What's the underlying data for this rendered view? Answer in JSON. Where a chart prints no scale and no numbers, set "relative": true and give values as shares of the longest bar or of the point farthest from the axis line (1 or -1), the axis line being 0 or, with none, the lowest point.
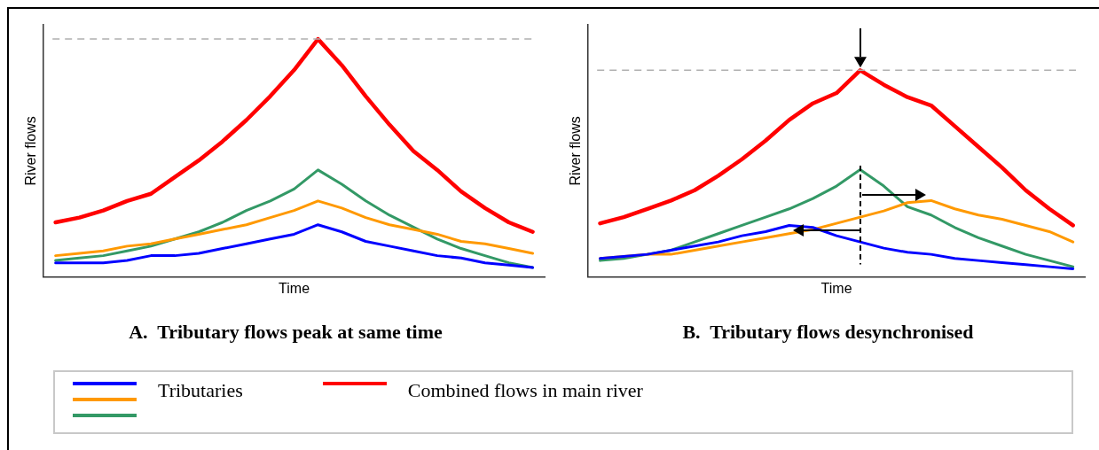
{
  "chart_data": [
    {
      "type": "line",
      "title": "A.  Tributary flows peak at same time",
      "xlabel": "Time",
      "ylabel": "River flows",
      "relative": true,
      "tick_labels": false,
      "legend": "bottom",
      "categories": [
        null,
        null,
        null,
        null,
        null,
        null,
        null,
        null,
        null,
        null,
        null,
        null,
        null,
        null,
        null,
        null,
        null,
        null,
        null,
        null,
        null
      ],
      "ref_lines": [
        {
          "axis": "y",
          "value": 1,
          "color": "#b0b0b0",
          "line_style": "dashed"
        }
      ],
      "series": [
        {
          "name": "Tributaries",
          "color": "#0000ff",
          "values": [
            0.06,
            0.06,
            0.06,
            0.07,
            0.09,
            0.09,
            0.1,
            0.12,
            0.14,
            0.16,
            0.18,
            0.22,
            0.19,
            0.15,
            0.13,
            0.11,
            0.09,
            0.08,
            0.06,
            0.05,
            0.04
          ]
        },
        {
          "color": "#ff9900",
          "values": [
            0.09,
            0.1,
            0.11,
            0.13,
            0.14,
            0.16,
            0.18,
            0.2,
            0.22,
            0.25,
            0.28,
            0.32,
            0.29,
            0.25,
            0.22,
            0.2,
            0.18,
            0.15,
            0.14,
            0.12,
            0.1
          ]
        },
        {
          "color": "#339966",
          "values": [
            0.07,
            0.08,
            0.09,
            0.11,
            0.13,
            0.16,
            0.19,
            0.23,
            0.28,
            0.32,
            0.37,
            0.45,
            0.39,
            0.32,
            0.26,
            0.21,
            0.16,
            0.12,
            0.09,
            0.06,
            0.04
          ]
        },
        {
          "name": "Combined flows in main river",
          "color": "#ff0000",
          "values": [
            0.23,
            0.25,
            0.28,
            0.32,
            0.35,
            0.42,
            0.49,
            0.57,
            0.66,
            0.76,
            0.87,
            1.0,
            0.89,
            0.76,
            0.64,
            0.53,
            0.45,
            0.36,
            0.29,
            0.23,
            0.19
          ]
        }
      ]
    },
    {
      "type": "line",
      "title": "B.  Tributary flows desynchronised",
      "xlabel": "Time",
      "ylabel": "River flows",
      "relative": true,
      "tick_labels": false,
      "categories": [
        null,
        null,
        null,
        null,
        null,
        null,
        null,
        null,
        null,
        null,
        null,
        null,
        null,
        null,
        null,
        null,
        null,
        null,
        null,
        null,
        null
      ],
      "ref_lines": [
        {
          "axis": "y",
          "value": 1,
          "color": "#b0b0b0",
          "line_style": "dashed"
        }
      ],
      "series": [
        {
          "color": "#0000ff",
          "values": [
            0.09,
            0.1,
            0.11,
            0.13,
            0.15,
            0.17,
            0.2,
            0.22,
            0.25,
            0.24,
            0.2,
            0.17,
            0.14,
            0.12,
            0.11,
            0.09,
            0.08,
            0.07,
            0.06,
            0.05,
            0.04
          ]
        },
        {
          "color": "#ff9900",
          "values": [
            0.09,
            0.1,
            0.11,
            0.11,
            0.13,
            0.15,
            0.17,
            0.19,
            0.21,
            0.23,
            0.26,
            0.29,
            0.32,
            0.36,
            0.37,
            0.33,
            0.3,
            0.28,
            0.25,
            0.22,
            0.17
          ]
        },
        {
          "color": "#339966",
          "values": [
            0.08,
            0.09,
            0.11,
            0.13,
            0.17,
            0.21,
            0.25,
            0.29,
            0.33,
            0.38,
            0.44,
            0.52,
            0.44,
            0.34,
            0.3,
            0.24,
            0.19,
            0.15,
            0.11,
            0.08,
            0.05
          ]
        },
        {
          "color": "#ff0000",
          "values": [
            0.26,
            0.29,
            0.33,
            0.37,
            0.42,
            0.49,
            0.57,
            0.66,
            0.76,
            0.84,
            0.89,
            1.0,
            0.93,
            0.87,
            0.83,
            0.73,
            0.63,
            0.53,
            0.42,
            0.33,
            0.25
          ]
        }
      ]
    }
  ]
}
